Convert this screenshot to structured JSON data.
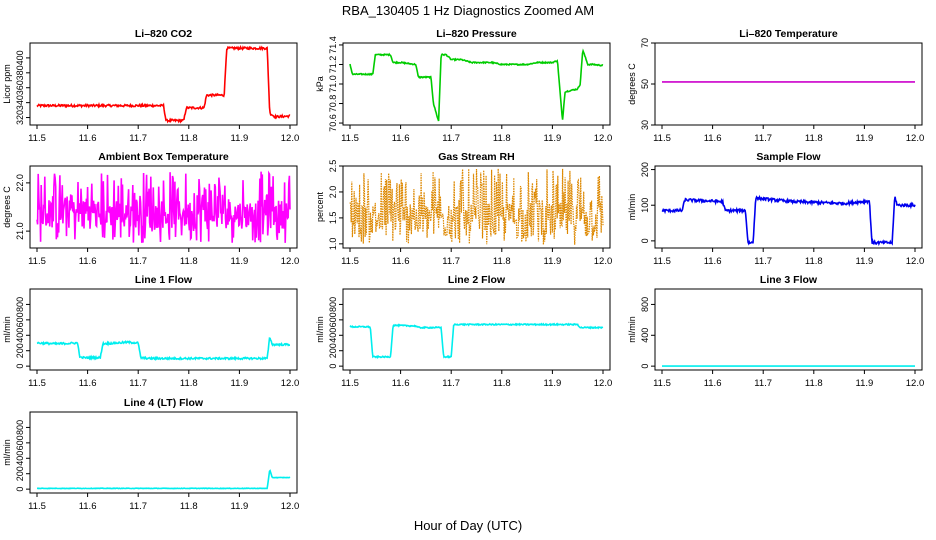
{
  "figure": {
    "title": "RBA_130405  1 Hz Diagnostics Zoomed AM",
    "xlabel": "Hour of Day (UTC)"
  },
  "chart_data": [
    {
      "type": "line",
      "title": "Li–820 CO2",
      "ylabel": "Licor ppm",
      "color": "#ff0000",
      "xlim": [
        11.5,
        12.0
      ],
      "ylim": [
        310,
        420
      ],
      "xticks": [
        11.5,
        11.6,
        11.7,
        11.8,
        11.9,
        12.0
      ],
      "xtick_labels": [
        "11.5",
        "11.6",
        "11.7",
        "11.8",
        "11.9",
        "12.0"
      ],
      "yticks": [
        320,
        340,
        360,
        380,
        400
      ],
      "ytick_labels": [
        "320",
        "340",
        "360",
        "380",
        "400"
      ],
      "series": [
        {
          "name": "CO2",
          "x": [
            11.5,
            11.75,
            11.755,
            11.79,
            11.795,
            11.83,
            11.835,
            11.87,
            11.875,
            11.955,
            11.96,
            11.97,
            12.0
          ],
          "y": [
            336,
            336,
            316,
            316,
            333,
            333,
            350,
            350,
            413,
            413,
            326,
            321,
            322
          ],
          "noise": 1.5
        }
      ]
    },
    {
      "type": "line",
      "title": "Li–820 Pressure",
      "ylabel": "kPa",
      "color": "#00cc00",
      "xlim": [
        11.5,
        12.0
      ],
      "ylim": [
        70.58,
        71.42
      ],
      "xticks": [
        11.5,
        11.6,
        11.7,
        11.8,
        11.9,
        12.0
      ],
      "xtick_labels": [
        "11.5",
        "11.6",
        "11.7",
        "11.8",
        "11.9",
        "12.0"
      ],
      "yticks": [
        70.6,
        70.8,
        71.0,
        71.2,
        71.4
      ],
      "ytick_labels": [
        "70.6",
        "70.8",
        "71.0",
        "71.2",
        "71.4"
      ],
      "series": [
        {
          "name": "Pressure",
          "x": [
            11.5,
            11.505,
            11.515,
            11.545,
            11.55,
            11.58,
            11.585,
            11.595,
            11.6,
            11.63,
            11.635,
            11.66,
            11.665,
            11.675,
            11.68,
            11.69,
            11.7,
            11.72,
            11.74,
            11.78,
            11.8,
            11.85,
            11.87,
            11.9,
            11.91,
            11.92,
            11.925,
            11.95,
            11.955,
            11.96,
            11.97,
            11.98,
            12.0
          ],
          "y": [
            71.2,
            71.1,
            71.1,
            71.1,
            71.3,
            71.3,
            71.22,
            71.22,
            71.22,
            71.2,
            71.07,
            71.07,
            70.8,
            70.62,
            71.3,
            71.3,
            71.25,
            71.25,
            71.22,
            71.22,
            71.2,
            71.2,
            71.22,
            71.22,
            71.24,
            70.62,
            70.92,
            70.95,
            71.0,
            71.35,
            71.2,
            71.2,
            71.19
          ],
          "noise": 0.006
        }
      ]
    },
    {
      "type": "line",
      "title": "Li–820 Temperature",
      "ylabel": "degrees C",
      "color": "#cc00cc",
      "xlim": [
        11.5,
        12.0
      ],
      "ylim": [
        30,
        70
      ],
      "xticks": [
        11.5,
        11.6,
        11.7,
        11.8,
        11.9,
        12.0
      ],
      "xtick_labels": [
        "11.5",
        "11.6",
        "11.7",
        "11.8",
        "11.9",
        "12.0"
      ],
      "yticks": [
        30,
        50,
        70
      ],
      "ytick_labels": [
        "30",
        "50",
        "70"
      ],
      "series": [
        {
          "name": "Temperature",
          "x": [
            11.5,
            12.0
          ],
          "y": [
            51,
            51
          ],
          "noise": 0
        }
      ]
    },
    {
      "type": "line",
      "title": "Ambient Box Temperature",
      "ylabel": "degrees C",
      "color": "#ff00ff",
      "xlim": [
        11.5,
        12.0
      ],
      "ylim": [
        20.65,
        22.35
      ],
      "xticks": [
        11.5,
        11.6,
        11.7,
        11.8,
        11.9,
        12.0
      ],
      "xtick_labels": [
        "11.5",
        "11.6",
        "11.7",
        "11.8",
        "11.9",
        "12.0"
      ],
      "yticks": [
        21.0,
        22.0
      ],
      "ytick_labels": [
        "21.0",
        "22.0"
      ],
      "series": [
        {
          "name": "Box Temperature",
          "x": [
            11.5,
            12.0
          ],
          "y": [
            21.35,
            21.35
          ],
          "noise": 0.3,
          "spread": [
            20.75,
            22.25
          ]
        }
      ]
    },
    {
      "type": "line",
      "title": "Gas Stream RH",
      "ylabel": "percent",
      "color": "#dd8800",
      "xlim": [
        11.5,
        12.0
      ],
      "ylim": [
        0.92,
        2.5
      ],
      "xticks": [
        11.5,
        11.6,
        11.7,
        11.8,
        11.9,
        12.0
      ],
      "xtick_labels": [
        "11.5",
        "11.6",
        "11.7",
        "11.8",
        "11.9",
        "12.0"
      ],
      "yticks": [
        1.0,
        1.5,
        2.0,
        2.5
      ],
      "ytick_labels": [
        "1.0",
        "1.5",
        "2.0",
        "2.5"
      ],
      "series": [
        {
          "name": "RH",
          "x": [
            11.5,
            12.0
          ],
          "y": [
            1.45,
            1.45
          ],
          "noise": 0.35,
          "spread": [
            0.98,
            2.45
          ]
        }
      ]
    },
    {
      "type": "line",
      "title": "Sample Flow",
      "ylabel": "ml/min",
      "color": "#0000ee",
      "xlim": [
        11.5,
        12.0
      ],
      "ylim": [
        -20,
        210
      ],
      "xticks": [
        11.5,
        11.6,
        11.7,
        11.8,
        11.9,
        12.0
      ],
      "xtick_labels": [
        "11.5",
        "11.6",
        "11.7",
        "11.8",
        "11.9",
        "12.0"
      ],
      "yticks": [
        0,
        100,
        200
      ],
      "ytick_labels": [
        "0",
        "100",
        "200"
      ],
      "series": [
        {
          "name": "Sample Flow",
          "x": [
            11.5,
            11.54,
            11.545,
            11.62,
            11.625,
            11.665,
            11.67,
            11.68,
            11.685,
            11.72,
            11.76,
            11.86,
            11.91,
            11.915,
            11.955,
            11.96,
            11.965,
            12.0
          ],
          "y": [
            85,
            85,
            115,
            110,
            85,
            85,
            -5,
            -5,
            120,
            115,
            110,
            105,
            112,
            -5,
            -5,
            125,
            100,
            100
          ],
          "noise": 4
        }
      ]
    },
    {
      "type": "line",
      "title": "Line 1 Flow",
      "ylabel": "ml/min",
      "color": "#00eeee",
      "xlim": [
        11.5,
        12.0
      ],
      "ylim": [
        -50,
        1000
      ],
      "xticks": [
        11.5,
        11.6,
        11.7,
        11.8,
        11.9,
        12.0
      ],
      "xtick_labels": [
        "11.5",
        "11.6",
        "11.7",
        "11.8",
        "11.9",
        "12.0"
      ],
      "yticks": [
        0,
        200,
        400,
        600,
        800
      ],
      "ytick_labels": [
        "0",
        "200",
        "400",
        "600",
        "800"
      ],
      "series": [
        {
          "name": "Line 1",
          "x": [
            11.5,
            11.54,
            11.58,
            11.585,
            11.625,
            11.63,
            11.68,
            11.7,
            11.705,
            11.72,
            11.9,
            11.955,
            11.96,
            11.965,
            12.0
          ],
          "y": [
            300,
            290,
            300,
            110,
            110,
            290,
            310,
            300,
            110,
            100,
            100,
            100,
            380,
            280,
            280
          ],
          "noise": 12
        }
      ]
    },
    {
      "type": "line",
      "title": "Line 2 Flow",
      "ylabel": "ml/min",
      "color": "#00eeee",
      "xlim": [
        11.5,
        12.0
      ],
      "ylim": [
        -50,
        1000
      ],
      "xticks": [
        11.5,
        11.6,
        11.7,
        11.8,
        11.9,
        12.0
      ],
      "xtick_labels": [
        "11.5",
        "11.6",
        "11.7",
        "11.8",
        "11.9",
        "12.0"
      ],
      "yticks": [
        0,
        200,
        400,
        600,
        800
      ],
      "ytick_labels": [
        "0",
        "200",
        "400",
        "600",
        "800"
      ],
      "series": [
        {
          "name": "Line 2",
          "x": [
            11.5,
            11.54,
            11.545,
            11.58,
            11.585,
            11.63,
            11.635,
            11.68,
            11.685,
            11.7,
            11.705,
            11.95,
            11.955,
            12.0
          ],
          "y": [
            510,
            510,
            120,
            120,
            530,
            520,
            500,
            500,
            120,
            120,
            540,
            540,
            500,
            500
          ],
          "noise": 8
        }
      ]
    },
    {
      "type": "line",
      "title": "Line 3 Flow",
      "ylabel": "ml/min",
      "color": "#00eeee",
      "xlim": [
        11.5,
        12.0
      ],
      "ylim": [
        -50,
        1000
      ],
      "xticks": [
        11.5,
        11.6,
        11.7,
        11.8,
        11.9,
        12.0
      ],
      "xtick_labels": [
        "11.5",
        "11.6",
        "11.7",
        "11.8",
        "11.9",
        "12.0"
      ],
      "yticks": [
        0,
        400,
        800
      ],
      "ytick_labels": [
        "0",
        "400",
        "800"
      ],
      "series": [
        {
          "name": "Line 3",
          "x": [
            11.5,
            12.0
          ],
          "y": [
            0,
            0
          ],
          "noise": 0
        }
      ]
    },
    {
      "type": "line",
      "title": "Line 4 (LT) Flow",
      "ylabel": "ml/min",
      "color": "#00eeee",
      "xlim": [
        11.5,
        12.0
      ],
      "ylim": [
        -50,
        1000
      ],
      "xticks": [
        11.5,
        11.6,
        11.7,
        11.8,
        11.9,
        12.0
      ],
      "xtick_labels": [
        "11.5",
        "11.6",
        "11.7",
        "11.8",
        "11.9",
        "12.0"
      ],
      "yticks": [
        0,
        200,
        400,
        600,
        800
      ],
      "ytick_labels": [
        "0",
        "200",
        "400",
        "600",
        "800"
      ],
      "series": [
        {
          "name": "Line 4",
          "x": [
            11.5,
            11.955,
            11.96,
            11.965,
            12.0
          ],
          "y": [
            10,
            10,
            250,
            150,
            150
          ],
          "noise": 3
        }
      ]
    }
  ]
}
